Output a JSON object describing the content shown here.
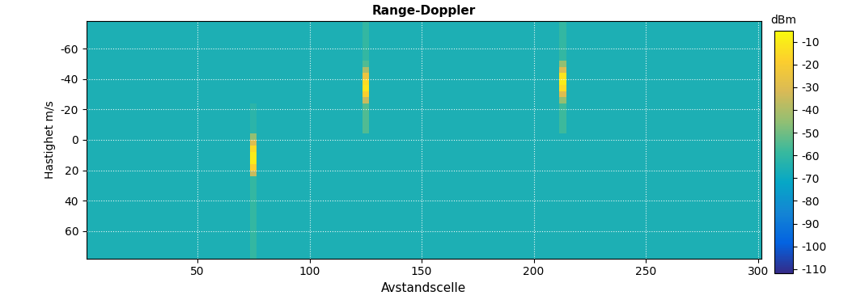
{
  "chart_data": {
    "type": "heatmap",
    "title": "Range-Doppler",
    "x_label": "Avstandscelle",
    "y_label": "Hastighet m/s",
    "x_edges": [
      0.5,
      73.5,
      76.5,
      123.5,
      126.5,
      211.5,
      214.5,
      301.5
    ],
    "y_edges": [
      -78,
      -52,
      -48,
      -44,
      -40,
      -36,
      -32,
      -28,
      -24,
      -4,
      0,
      4,
      8,
      12,
      16,
      20,
      24,
      78
    ],
    "cells": [
      [
        -66,
        -66,
        -66,
        -60,
        -66,
        -60,
        -66
      ],
      [
        -66,
        -66,
        -66,
        -55,
        -66,
        -45,
        -66
      ],
      [
        -66,
        -66,
        -66,
        -40,
        -66,
        -30,
        -66
      ],
      [
        -66,
        -66,
        -66,
        -25,
        -66,
        -12,
        -66
      ],
      [
        -66,
        -66,
        -66,
        -15,
        -66,
        -10,
        -66
      ],
      [
        -66,
        -66,
        -66,
        -12,
        -66,
        -15,
        -66
      ],
      [
        -66,
        -66,
        -66,
        -18,
        -66,
        -30,
        -66
      ],
      [
        -66,
        -66,
        -66,
        -35,
        -66,
        -45,
        -66
      ],
      [
        -66,
        -62,
        -66,
        -55,
        -66,
        -58,
        -66
      ],
      [
        -66,
        -45,
        -66,
        -66,
        -66,
        -66,
        -66
      ],
      [
        -66,
        -30,
        -66,
        -66,
        -66,
        -66,
        -66
      ],
      [
        -66,
        -15,
        -66,
        -66,
        -66,
        -66,
        -66
      ],
      [
        -66,
        -10,
        -66,
        -66,
        -66,
        -66,
        -66
      ],
      [
        -66,
        -10,
        -66,
        -66,
        -66,
        -66,
        -66
      ],
      [
        -66,
        -18,
        -66,
        -66,
        -66,
        -66,
        -66
      ],
      [
        -66,
        -35,
        -66,
        -66,
        -66,
        -66,
        -66
      ],
      [
        -66,
        -60,
        -66,
        -66,
        -66,
        -66,
        -66
      ]
    ],
    "xlim": [
      0.5,
      301.5
    ],
    "ylim": [
      78,
      -78
    ],
    "xticks": [
      50,
      100,
      150,
      200,
      250,
      300
    ],
    "yticks": [
      -60,
      -40,
      -20,
      0,
      20,
      40,
      60
    ],
    "grid": true,
    "colorbar_label": "dBm",
    "colorbar_range": [
      -112,
      -5
    ],
    "colorbar_ticks": [
      -110,
      -100,
      -90,
      -80,
      -70,
      -60,
      -50,
      -40,
      -30,
      -20,
      -10
    ]
  }
}
